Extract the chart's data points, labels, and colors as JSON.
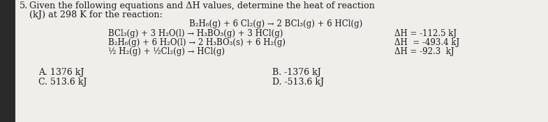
{
  "background_color": "#f0eeeb",
  "left_bg": "#1a1a1a",
  "question_number": "5.",
  "question_text_line1": "Given the following equations and ΔH values, determine the heat of reaction",
  "question_text_line2": "(kJ) at 298 K for the reaction:",
  "target_reaction": "B₂H₆(g) + 6 Cl₂(g) → 2 BCl₃(g) + 6 HCl(g)",
  "eq1": "BCl₃(g) + 3 H₂O(l) → H₃BO₃(g) + 3 HCl(g)",
  "eq2": "B₂H₆(g) + 6 H₂O(l) → 2 H₃BO₃(s) + 6 H₂(g)",
  "eq3": "½ H₂(g) + ½Cl₂(g) → HCl(g)",
  "dh1": "ΔH = -112.5 kJ",
  "dh2": "ΔH  = -493.4 kJ",
  "dh3": "ΔH = -92.3  kJ",
  "ans_A": "A. 1376 kJ",
  "ans_B": "B. -1376 kJ",
  "ans_C": "C. 513.6 kJ",
  "ans_D": "D. -513.6 kJ",
  "font_color": "#1c1c1c",
  "font_size_main": 9.2,
  "font_size_eq": 8.5,
  "font_size_ans": 9.0
}
